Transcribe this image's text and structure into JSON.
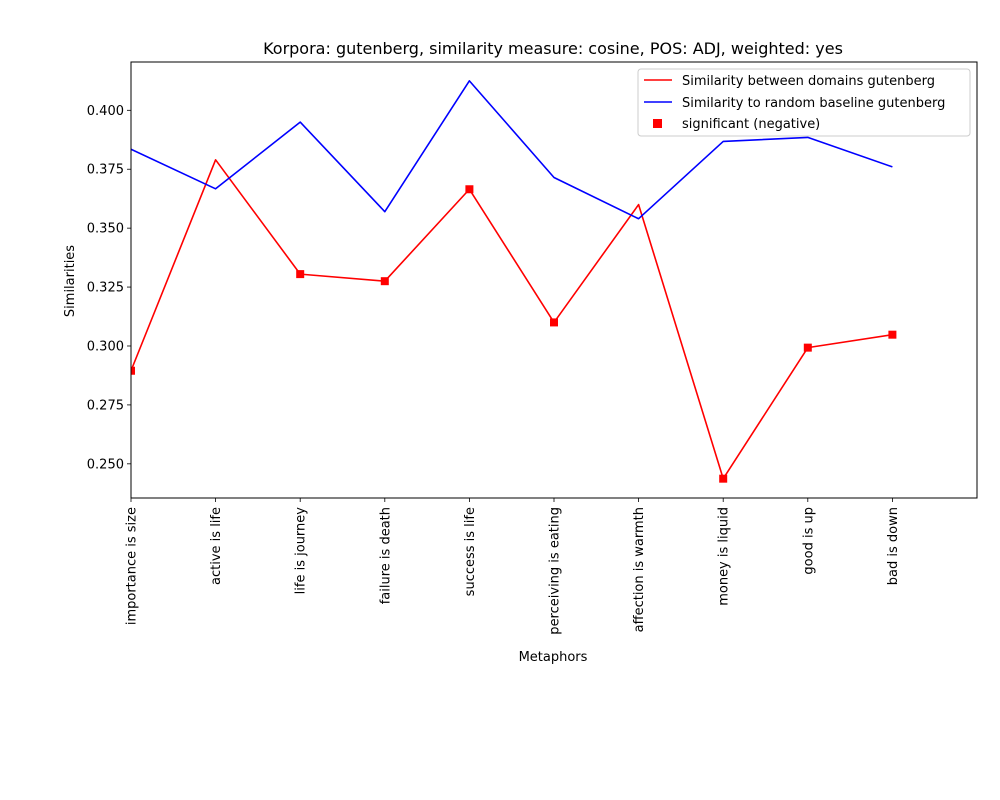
{
  "chart_data": {
    "type": "line",
    "title": "Korpora: gutenberg, similarity measure: cosine, POS: ADJ, weighted: yes",
    "xlabel": "Metaphors",
    "ylabel": "Similarities",
    "categories": [
      "importance is size",
      "active is life",
      "life is journey",
      "failure is death",
      "success is life",
      "perceiving is eating",
      "affection is warmth",
      "money is liquid",
      "good is up",
      "bad is down"
    ],
    "ylim": [
      0.2355,
      0.4205
    ],
    "yticks": [
      0.25,
      0.275,
      0.3,
      0.325,
      0.35,
      0.375,
      0.4
    ],
    "ytick_labels": [
      "0.250",
      "0.275",
      "0.300",
      "0.325",
      "0.350",
      "0.375",
      "0.400"
    ],
    "xlim": [
      0,
      10
    ],
    "grid": false,
    "legend_position": "top-right",
    "series": [
      {
        "name": "Similarity between domains gutenberg",
        "color": "#ff0000",
        "values": [
          0.2895,
          0.379,
          0.3305,
          0.3275,
          0.3665,
          0.31,
          0.36,
          0.2437,
          0.2993,
          0.3048
        ]
      },
      {
        "name": "Similarity to random baseline gutenberg",
        "color": "#0000ff",
        "values": [
          0.3835,
          0.3667,
          0.395,
          0.357,
          0.4125,
          0.3715,
          0.354,
          0.3868,
          0.3885,
          0.376
        ]
      }
    ],
    "markers": {
      "name": "significant (negative)",
      "color": "#ff0000",
      "shape": "square",
      "indices": [
        0,
        2,
        3,
        4,
        5,
        7,
        8,
        9
      ]
    }
  }
}
